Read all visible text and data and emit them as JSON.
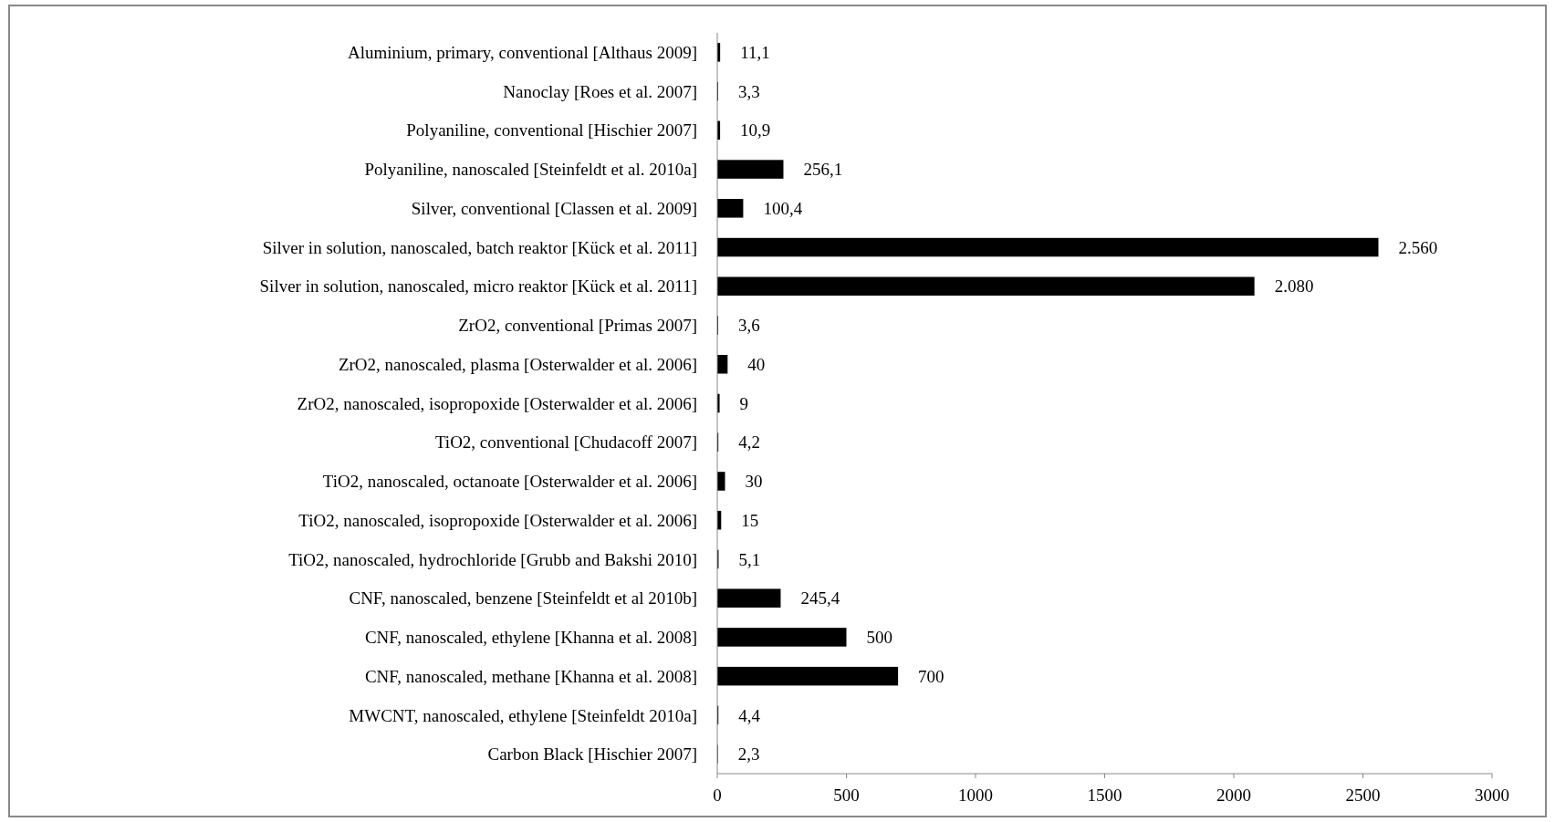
{
  "chart_data": {
    "type": "bar",
    "orientation": "horizontal",
    "categories": [
      "Aluminium, primary, conventional [Althaus 2009]",
      "Nanoclay [Roes et al. 2007]",
      "Polyaniline, conventional [Hischier 2007]",
      "Polyaniline, nanoscaled [Steinfeldt et al. 2010a]",
      "Silver, conventional [Classen et al. 2009]",
      "Silver in solution, nanoscaled, batch reaktor [Kück et al. 2011]",
      "Silver in solution, nanoscaled, micro reaktor [Kück et al. 2011]",
      "ZrO2, conventional [Primas 2007]",
      "ZrO2, nanoscaled, plasma [Osterwalder et al. 2006]",
      "ZrO2, nanoscaled, isopropoxide [Osterwalder et al. 2006]",
      "TiO2, conventional [Chudacoff 2007]",
      "TiO2, nanoscaled, octanoate [Osterwalder et al. 2006]",
      "TiO2, nanoscaled, isopropoxide [Osterwalder et al. 2006]",
      "TiO2, nanoscaled, hydrochloride [Grubb and Bakshi 2010]",
      "CNF, nanoscaled, benzene [Steinfeldt et al 2010b]",
      "CNF, nanoscaled, ethylene [Khanna et al. 2008]",
      "CNF, nanoscaled, methane [Khanna et al. 2008]",
      "MWCNT, nanoscaled, ethylene [Steinfeldt 2010a]",
      "Carbon Black [Hischier 2007]"
    ],
    "values": [
      11.1,
      3.3,
      10.9,
      256.1,
      100.4,
      2560,
      2080,
      3.6,
      40,
      9,
      4.2,
      30,
      15,
      5.1,
      245.4,
      500,
      700,
      4.4,
      2.3
    ],
    "value_labels": [
      "11,1",
      "3,3",
      "10,9",
      "256,1",
      "100,4",
      "2.560",
      "2.080",
      "3,6",
      "40",
      "9",
      "4,2",
      "30",
      "15",
      "5,1",
      "245,4",
      "500",
      "700",
      "4,4",
      "2,3"
    ],
    "color": "#000000",
    "xlim": [
      0,
      3000
    ],
    "xticks": [
      0,
      500,
      1000,
      1500,
      2000,
      2500,
      3000
    ],
    "grid": false
  }
}
